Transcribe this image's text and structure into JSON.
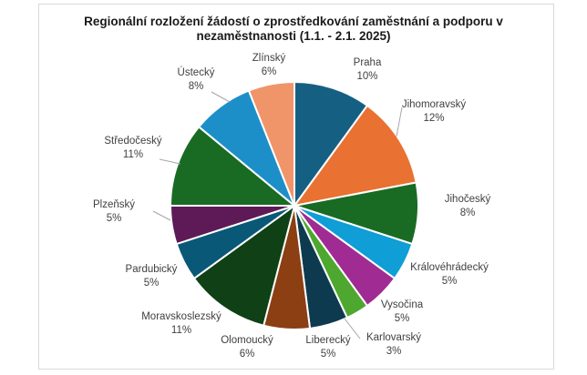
{
  "chart_data": {
    "type": "pie",
    "title_line1": "Regionální rozložení žádostí o zprostředkování zaměstnání a podporu v",
    "title_line2": "nezaměstnanosti (1.1. - 2.1. 2025)",
    "slices": [
      {
        "label": "Praha",
        "value": 10,
        "text": "10%",
        "color": "#156082"
      },
      {
        "label": "Jihomoravský",
        "value": 12,
        "text": "12%",
        "color": "#E97132"
      },
      {
        "label": "Jihočeský",
        "value": 8,
        "text": "8%",
        "color": "#196B24"
      },
      {
        "label": "Královéhrádecký",
        "value": 5,
        "text": "5%",
        "color": "#0F9ED5"
      },
      {
        "label": "Vysočina",
        "value": 5,
        "text": "5%",
        "color": "#A02B93"
      },
      {
        "label": "Karlovarský",
        "value": 3,
        "text": "3%",
        "color": "#4EA72E"
      },
      {
        "label": "Liberecký",
        "value": 5,
        "text": "5%",
        "color": "#0D3A4F"
      },
      {
        "label": "Olomoucký",
        "value": 6,
        "text": "6%",
        "color": "#8B3F12"
      },
      {
        "label": "Moravskoslezský",
        "value": 11,
        "text": "11%",
        "color": "#0F4016"
      },
      {
        "label": "Pardubický",
        "value": 5,
        "text": "5%",
        "color": "#0A5877"
      },
      {
        "label": "Plzeňský",
        "value": 5,
        "text": "5%",
        "color": "#5E1A57"
      },
      {
        "label": "Středočeský",
        "value": 11,
        "text": "11%",
        "color": "#196B24"
      },
      {
        "label": "Ústecký",
        "value": 8,
        "text": "8%",
        "color": "#1D8FC8"
      },
      {
        "label": "Zlínský",
        "value": 6,
        "text": "6%",
        "color": "#F0946A"
      }
    ]
  }
}
